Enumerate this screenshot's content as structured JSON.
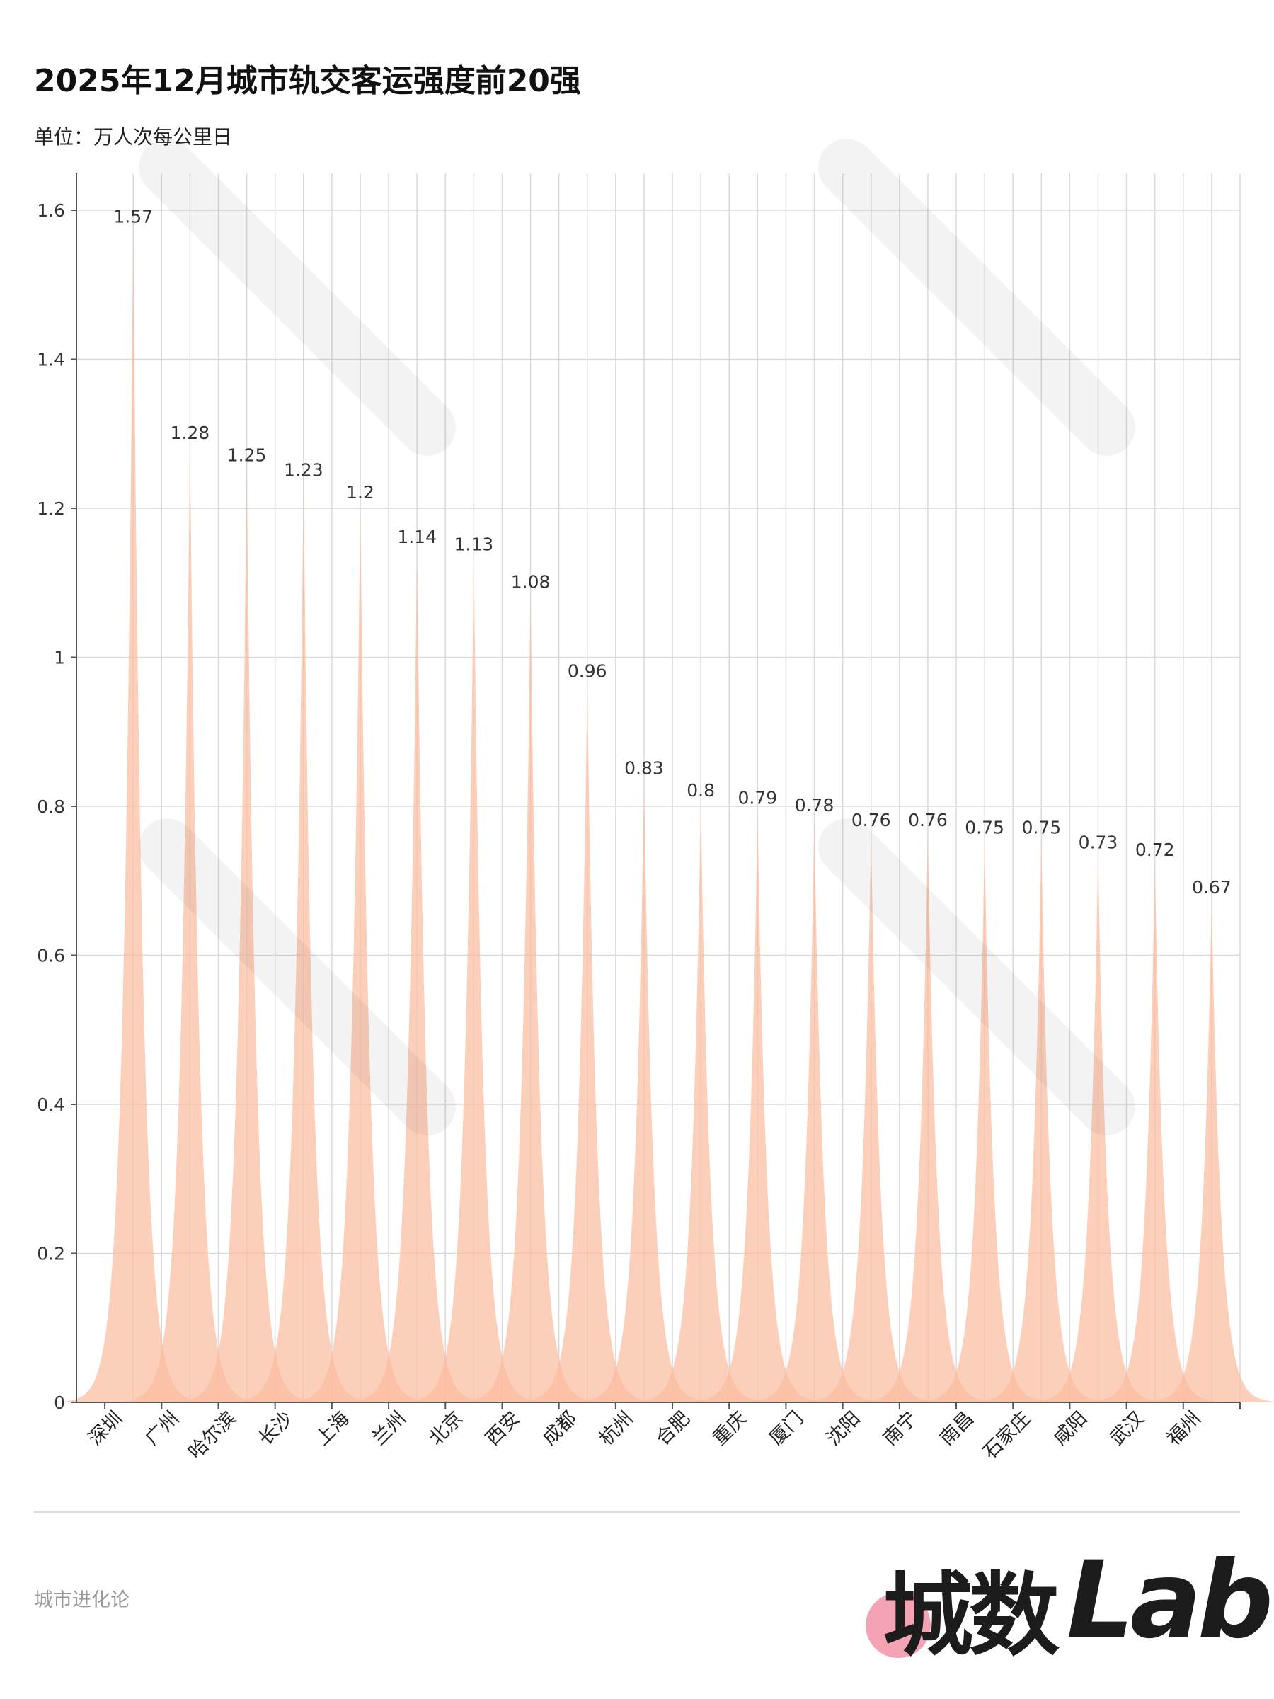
{
  "header": {
    "title": "2025年12月城市轨交客运强度前20强",
    "subtitle": "单位：万人次每公里日"
  },
  "footer": {
    "source": "城市进化论",
    "logo_cn": "城数",
    "logo_en": "Lab."
  },
  "colors": {
    "fill": "#fbbd9f",
    "grid": "#d9d9d9",
    "axis": "#555555",
    "logo_dot": "#f4a3b4"
  },
  "chart_data": {
    "type": "area",
    "categories": [
      "深圳",
      "广州",
      "哈尔滨",
      "长沙",
      "上海",
      "兰州",
      "北京",
      "西安",
      "成都",
      "杭州",
      "合肥",
      "重庆",
      "厦门",
      "沈阳",
      "南宁",
      "南昌",
      "石家庄",
      "咸阳",
      "武汉",
      "福州"
    ],
    "values": [
      1.57,
      1.28,
      1.25,
      1.23,
      1.2,
      1.14,
      1.13,
      1.08,
      0.96,
      0.83,
      0.8,
      0.79,
      0.78,
      0.76,
      0.76,
      0.75,
      0.75,
      0.73,
      0.72,
      0.67
    ],
    "value_labels": [
      "1.57",
      "1.28",
      "1.25",
      "1.23",
      "1.2",
      "1.14",
      "1.13",
      "1.08",
      "0.96",
      "0.83",
      "0.8",
      "0.79",
      "0.78",
      "0.76",
      "0.76",
      "0.75",
      "0.75",
      "0.73",
      "0.72",
      "0.67"
    ],
    "ylim": [
      0,
      1.6
    ],
    "yticks": [
      0,
      0.2,
      0.4,
      0.6,
      0.8,
      1,
      1.2,
      1.4,
      1.6
    ],
    "ytick_labels": [
      "0",
      "0.2",
      "0.4",
      "0.6",
      "0.8",
      "1",
      "1.2",
      "1.4",
      "1.6"
    ],
    "grid": true,
    "xlabel": "",
    "ylabel": ""
  }
}
